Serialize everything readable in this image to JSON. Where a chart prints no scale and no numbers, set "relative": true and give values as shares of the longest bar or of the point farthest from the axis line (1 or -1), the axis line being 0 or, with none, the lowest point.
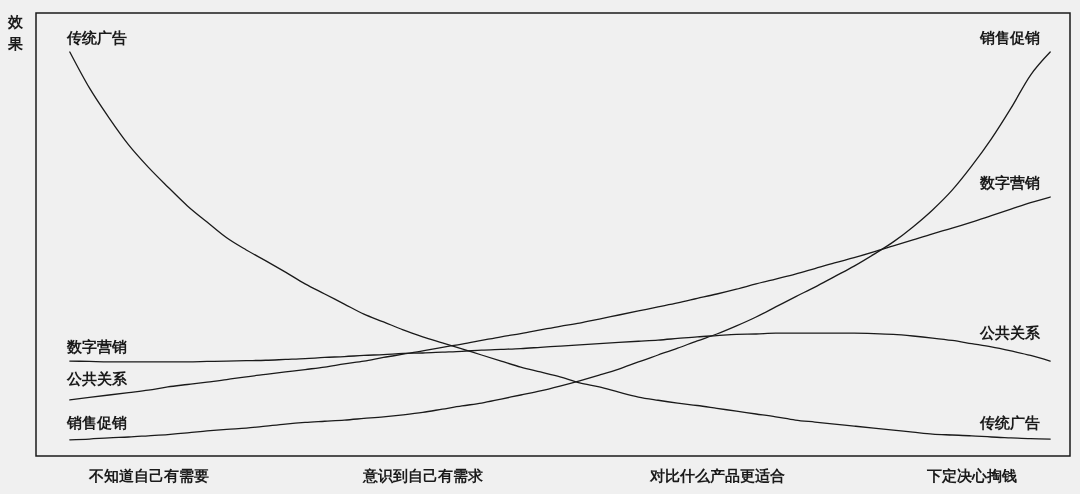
{
  "chart_data": {
    "type": "line",
    "relative": true,
    "ylabel": "效果",
    "line_style": "solid",
    "categories": [
      null,
      null,
      null,
      null,
      "不知道自己有需要",
      null,
      null,
      null,
      null,
      null,
      null,
      null,
      null,
      null,
      null,
      null,
      null,
      null,
      "意识到自己有需求",
      null,
      null,
      null,
      null,
      null,
      null,
      null,
      null,
      null,
      null,
      null,
      null,
      null,
      null,
      "对比什么产品更适合",
      null,
      null,
      null,
      null,
      null,
      null,
      null,
      null,
      null,
      null,
      null,
      null,
      "下定决心掏钱",
      null,
      null,
      null,
      null
    ],
    "series": [
      {
        "name": "传统广告",
        "color": "#1a1a1a",
        "values": [
          1.0,
          0.911,
          0.837,
          0.77,
          0.715,
          0.666,
          0.619,
          0.579,
          0.54,
          0.51,
          0.483,
          0.455,
          0.426,
          0.401,
          0.376,
          0.351,
          0.332,
          0.312,
          0.295,
          0.28,
          0.265,
          0.25,
          0.235,
          0.22,
          0.208,
          0.196,
          0.181,
          0.171,
          0.158,
          0.146,
          0.138,
          0.131,
          0.125,
          0.118,
          0.111,
          0.104,
          0.097,
          0.089,
          0.084,
          0.079,
          0.074,
          0.069,
          0.064,
          0.059,
          0.054,
          0.052,
          0.05,
          0.047,
          0.045,
          0.043,
          0.042
        ]
      },
      {
        "name": "销售促销",
        "color": "#1a1a1a",
        "values": [
          0.04,
          0.042,
          0.045,
          0.047,
          0.05,
          0.053,
          0.057,
          0.062,
          0.066,
          0.069,
          0.074,
          0.079,
          0.083,
          0.086,
          0.089,
          0.093,
          0.097,
          0.102,
          0.108,
          0.116,
          0.124,
          0.131,
          0.141,
          0.151,
          0.161,
          0.173,
          0.186,
          0.2,
          0.215,
          0.233,
          0.25,
          0.267,
          0.285,
          0.302,
          0.322,
          0.344,
          0.369,
          0.394,
          0.418,
          0.444,
          0.47,
          0.499,
          0.53,
          0.567,
          0.609,
          0.658,
          0.718,
          0.785,
          0.861,
          0.943,
          1.0
        ]
      },
      {
        "name": "数字营销",
        "color": "#1a1a1a",
        "values": [
          0.139,
          0.145,
          0.151,
          0.157,
          0.163,
          0.171,
          0.177,
          0.183,
          0.189,
          0.196,
          0.202,
          0.208,
          0.214,
          0.22,
          0.228,
          0.235,
          0.244,
          0.252,
          0.26,
          0.269,
          0.277,
          0.286,
          0.295,
          0.303,
          0.312,
          0.321,
          0.329,
          0.339,
          0.349,
          0.359,
          0.369,
          0.379,
          0.39,
          0.401,
          0.413,
          0.426,
          0.438,
          0.45,
          0.464,
          0.478,
          0.491,
          0.505,
          0.52,
          0.535,
          0.55,
          0.564,
          0.579,
          0.595,
          0.611,
          0.627,
          0.641
        ]
      },
      {
        "name": "公共关系",
        "color": "#1a1a1a",
        "values": [
          0.235,
          0.234,
          0.233,
          0.233,
          0.233,
          0.233,
          0.233,
          0.234,
          0.235,
          0.236,
          0.237,
          0.239,
          0.241,
          0.244,
          0.246,
          0.249,
          0.251,
          0.254,
          0.255,
          0.257,
          0.259,
          0.262,
          0.264,
          0.266,
          0.269,
          0.272,
          0.275,
          0.278,
          0.281,
          0.284,
          0.287,
          0.291,
          0.295,
          0.298,
          0.301,
          0.302,
          0.304,
          0.304,
          0.304,
          0.304,
          0.304,
          0.303,
          0.301,
          0.297,
          0.292,
          0.286,
          0.278,
          0.27,
          0.26,
          0.249,
          0.235
        ]
      }
    ],
    "annotations": [
      "传统广告",
      "数字营销",
      "公共关系",
      "销售促销"
    ]
  }
}
